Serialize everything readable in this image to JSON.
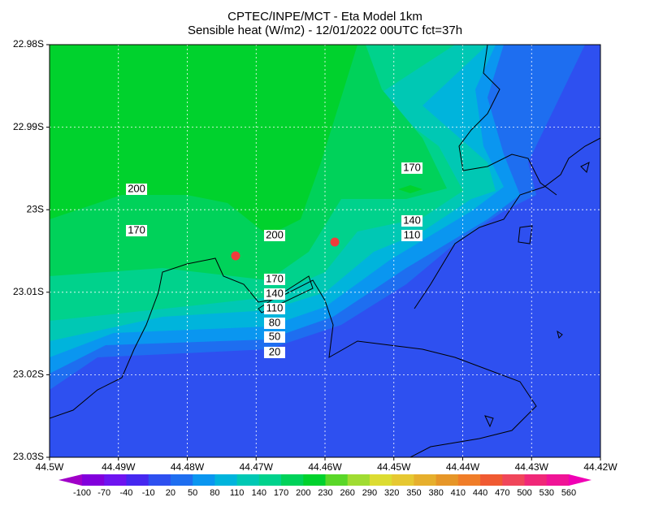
{
  "chart_data": {
    "type": "contour",
    "title": "CPTEC/INPE/MCT -  Eta Model 1km",
    "subtitle": "Sensible heat (W/m2) - 12/01/2022 00UTC fct=37h",
    "xlim": [
      -44.5,
      -44.42
    ],
    "ylim": [
      -23.03,
      -22.98
    ],
    "xticks": [
      {
        "value": -44.5,
        "label": "44.5W"
      },
      {
        "value": -44.49,
        "label": "44.49W"
      },
      {
        "value": -44.48,
        "label": "44.48W"
      },
      {
        "value": -44.47,
        "label": "44.47W"
      },
      {
        "value": -44.46,
        "label": "44.46W"
      },
      {
        "value": -44.45,
        "label": "44.45W"
      },
      {
        "value": -44.44,
        "label": "44.44W"
      },
      {
        "value": -44.43,
        "label": "44.43W"
      },
      {
        "value": -44.42,
        "label": "44.42W"
      }
    ],
    "yticks": [
      {
        "value": -22.98,
        "label": "22.98S"
      },
      {
        "value": -22.99,
        "label": "22.99S"
      },
      {
        "value": -23.0,
        "label": "23S"
      },
      {
        "value": -23.01,
        "label": "23.01S"
      },
      {
        "value": -23.02,
        "label": "23.02S"
      },
      {
        "value": -23.03,
        "label": "23.03S"
      }
    ],
    "grid": true,
    "colorbar": {
      "levels": [
        -100,
        -70,
        -40,
        -10,
        20,
        50,
        80,
        110,
        140,
        170,
        200,
        230,
        260,
        290,
        320,
        350,
        380,
        410,
        440,
        470,
        500,
        530,
        560
      ],
      "colors": [
        "#a000c8",
        "#8200dc",
        "#6e14f0",
        "#4628f0",
        "#2e50f0",
        "#1e6ef0",
        "#0a96f0",
        "#00b4dc",
        "#00c8b4",
        "#00d28c",
        "#00d25a",
        "#00d22d",
        "#5ad728",
        "#a0dc32",
        "#dcdc32",
        "#e6c832",
        "#e6af2d",
        "#e69628",
        "#f07d28",
        "#f05a32",
        "#f0465a",
        "#f02878",
        "#f01496",
        "#f000b4"
      ]
    },
    "contour_labels": [
      {
        "value": 170,
        "x": -44.44737,
        "y": -22.99496
      },
      {
        "value": 200,
        "x": -44.48737,
        "y": -22.99752
      },
      {
        "value": 170,
        "x": -44.48737,
        "y": -23.00254
      },
      {
        "value": 140,
        "x": -44.44737,
        "y": -23.00136
      },
      {
        "value": 110,
        "x": -44.44737,
        "y": -23.00313
      },
      {
        "value": 200,
        "x": -44.46732,
        "y": -23.00313
      },
      {
        "value": 170,
        "x": -44.46732,
        "y": -23.00844
      },
      {
        "value": 140,
        "x": -44.46732,
        "y": -23.01022
      },
      {
        "value": 110,
        "x": -44.46732,
        "y": -23.01199
      },
      {
        "value": 80,
        "x": -44.46732,
        "y": -23.01376
      },
      {
        "value": 50,
        "x": -44.46732,
        "y": -23.01543
      },
      {
        "value": 20,
        "x": -44.46732,
        "y": -23.0173
      }
    ],
    "points": {
      "color": "#f03c3c",
      "x": [
        -44.47298,
        -44.45858
      ],
      "y": [
        -23.00559,
        -23.00392
      ]
    }
  }
}
